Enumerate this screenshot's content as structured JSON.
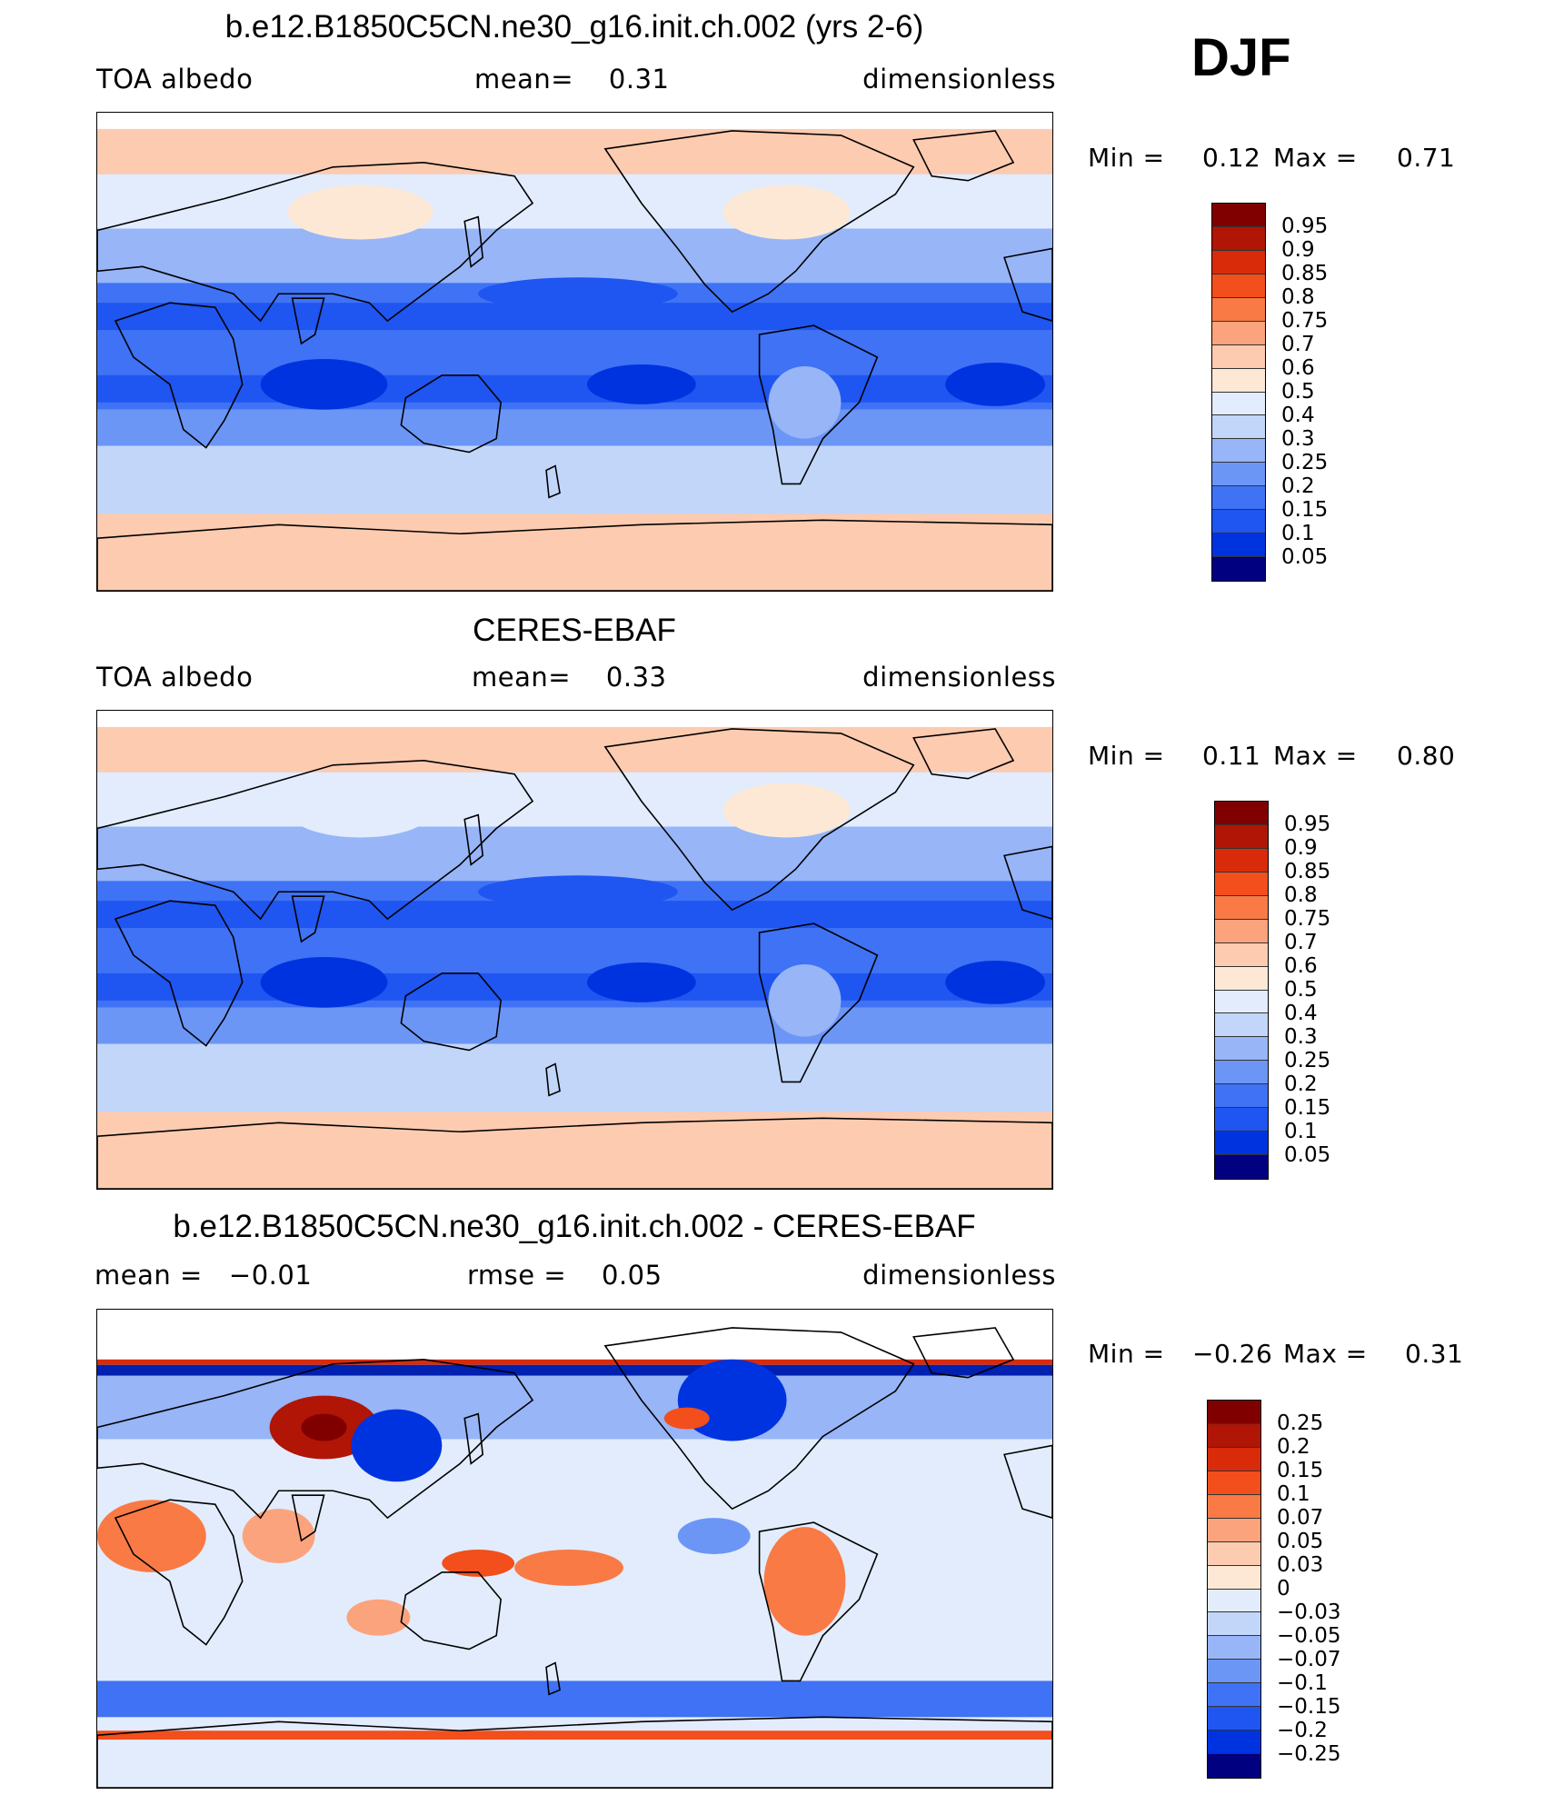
{
  "season": "DJF",
  "colors": {
    "rdbu": [
      "#000080",
      "#0020b0",
      "#0033e0",
      "#1f55f0",
      "#3f72f5",
      "#6c96f5",
      "#97b5f7",
      "#c2d6fa",
      "#e2ecfc",
      "#fde8d6",
      "#fccbb0",
      "#fba37c",
      "#f97a45",
      "#f24f1c",
      "#d92b0a",
      "#b01505",
      "#800000"
    ],
    "land_snow": "#ffffff",
    "coast": "#000000"
  },
  "panels": [
    {
      "title": "b.e12.B1850C5CN.ne30_g16.init.ch.002 (yrs 2-6)",
      "left_label": "TOA albedo",
      "center_label": "mean=    0.31",
      "right_label": "dimensionless",
      "min_label": "Min =",
      "min_value": "0.12",
      "max_label": "Max =",
      "max_value": "0.71",
      "colorbar_levels": [
        "0.95",
        "0.9",
        "0.85",
        "0.8",
        "0.75",
        "0.7",
        "0.6",
        "0.5",
        "0.4",
        "0.3",
        "0.25",
        "0.2",
        "0.15",
        "0.1",
        "0.05"
      ],
      "colorbar_colors": [
        "#800000",
        "#b01505",
        "#d92b0a",
        "#f24f1c",
        "#f97a45",
        "#fba37c",
        "#fccbb0",
        "#fde8d6",
        "#e2ecfc",
        "#c2d6fa",
        "#97b5f7",
        "#6c96f5",
        "#3f72f5",
        "#1f55f0",
        "#0033e0",
        "#000080"
      ],
      "field_kind": "model"
    },
    {
      "title": "CERES-EBAF",
      "left_label": "TOA albedo",
      "center_label": "mean=    0.33",
      "right_label": "dimensionless",
      "min_label": "Min =",
      "min_value": "0.11",
      "max_label": "Max =",
      "max_value": "0.80",
      "colorbar_levels": [
        "0.95",
        "0.9",
        "0.85",
        "0.8",
        "0.75",
        "0.7",
        "0.6",
        "0.5",
        "0.4",
        "0.3",
        "0.25",
        "0.2",
        "0.15",
        "0.1",
        "0.05"
      ],
      "colorbar_colors": [
        "#800000",
        "#b01505",
        "#d92b0a",
        "#f24f1c",
        "#f97a45",
        "#fba37c",
        "#fccbb0",
        "#fde8d6",
        "#e2ecfc",
        "#c2d6fa",
        "#97b5f7",
        "#6c96f5",
        "#3f72f5",
        "#1f55f0",
        "#0033e0",
        "#000080"
      ],
      "field_kind": "obs"
    },
    {
      "title": "b.e12.B1850C5CN.ne30_g16.init.ch.002 - CERES-EBAF",
      "left_label": "mean =   −0.01",
      "center_label": "rmse =    0.05",
      "right_label": "dimensionless",
      "min_label": "Min =",
      "min_value": "−0.26",
      "max_label": "Max =",
      "max_value": "0.31",
      "colorbar_levels": [
        "0.25",
        "0.2",
        "0.15",
        "0.1",
        "0.07",
        "0.05",
        "0.03",
        "0",
        "−0.03",
        "−0.05",
        "−0.07",
        "−0.1",
        "−0.15",
        "−0.2",
        "−0.25"
      ],
      "colorbar_colors": [
        "#800000",
        "#b01505",
        "#d92b0a",
        "#f24f1c",
        "#f97a45",
        "#fba37c",
        "#fccbb0",
        "#fde8d6",
        "#e2ecfc",
        "#c2d6fa",
        "#97b5f7",
        "#6c96f5",
        "#3f72f5",
        "#1f55f0",
        "#0033e0",
        "#000080"
      ],
      "field_kind": "diff"
    }
  ]
}
